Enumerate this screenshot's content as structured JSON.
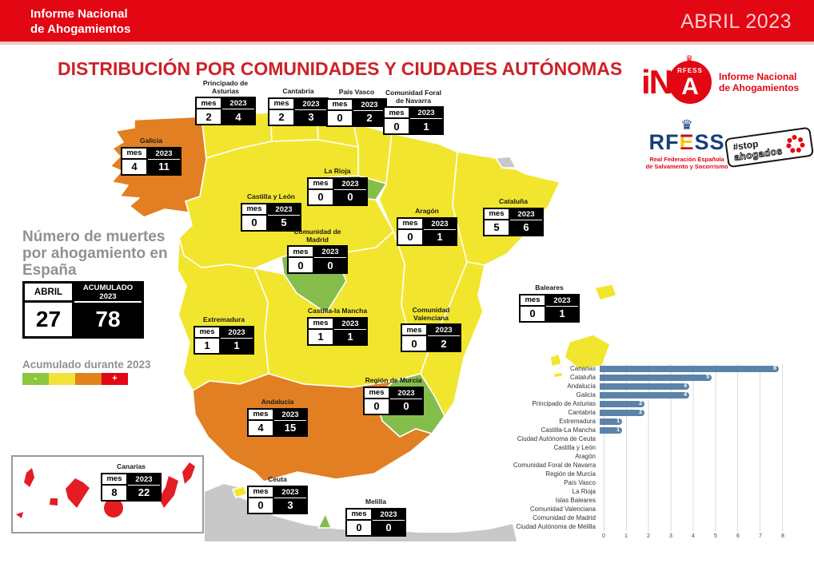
{
  "header": {
    "brand_line1": "Informe Nacional",
    "brand_line2": "de Ahogamientos",
    "period": "ABRIL 2023"
  },
  "page_title": "DISTRIBUCIÓN POR COMUNIDADES Y CIUDADES AUTÓNOMAS",
  "logos": {
    "ina": {
      "letters": "iN",
      "circle_letter": "A",
      "circle_small": "RFESS",
      "caption_line1": "Informe Nacional",
      "caption_line2": "de Ahogamientos"
    },
    "rfess": {
      "acronym_left": "RF",
      "acronym_e": "E",
      "acronym_right": "SS",
      "caption_line1": "Real Federación Española",
      "caption_line2": "de Salvamento y Socorrismo"
    },
    "stop": {
      "line1": "#stop",
      "line2": "ahogados"
    }
  },
  "summary": {
    "heading": "Número de muertes por ahogamiento en España",
    "col_month": "ABRIL",
    "col_accumulated": "ACUMULADO 2023",
    "month_value": "27",
    "accumulated_value": "78"
  },
  "legend": {
    "title": "Acumulado durante 2023",
    "colors": [
      "#8cc63e",
      "#f3e338",
      "#e2821c",
      "#e30613"
    ],
    "min_label": "-",
    "max_label": "+"
  },
  "colors": {
    "yellow": "#f2e52e",
    "green": "#85bd4b",
    "orange": "#e17f22",
    "red": "#e41c23",
    "neutral": "#c8c8c8",
    "header_red": "#e30613",
    "bar_blue": "#5b83aa"
  },
  "map": {
    "col_month": "mes",
    "col_year": "2023",
    "regions": [
      {
        "id": "galicia",
        "name": "Galicia",
        "mes": "4",
        "acumulado": "11",
        "color": "orange"
      },
      {
        "id": "asturias",
        "name": "Principado de Asturias",
        "mes": "2",
        "acumulado": "4",
        "color": "yellow"
      },
      {
        "id": "cantabria",
        "name": "Cantabria",
        "mes": "2",
        "acumulado": "3",
        "color": "yellow"
      },
      {
        "id": "pais_vasco",
        "name": "País Vasco",
        "mes": "0",
        "acumulado": "2",
        "color": "yellow"
      },
      {
        "id": "navarra",
        "name": "Comunidad Foral de Navarra",
        "mes": "0",
        "acumulado": "1",
        "color": "yellow"
      },
      {
        "id": "rioja",
        "name": "La Rioja",
        "mes": "0",
        "acumulado": "0",
        "color": "green"
      },
      {
        "id": "castilla_leon",
        "name": "Castilla y León",
        "mes": "0",
        "acumulado": "5",
        "color": "yellow"
      },
      {
        "id": "madrid",
        "name": "Comunidad de Madrid",
        "mes": "0",
        "acumulado": "0",
        "color": "green"
      },
      {
        "id": "aragon",
        "name": "Aragón",
        "mes": "0",
        "acumulado": "1",
        "color": "yellow"
      },
      {
        "id": "cataluna",
        "name": "Cataluña",
        "mes": "5",
        "acumulado": "6",
        "color": "yellow"
      },
      {
        "id": "extremadura",
        "name": "Extremadura",
        "mes": "1",
        "acumulado": "1",
        "color": "yellow"
      },
      {
        "id": "castilla_mancha",
        "name": "Castilla-la Mancha",
        "mes": "1",
        "acumulado": "1",
        "color": "yellow"
      },
      {
        "id": "valenciana",
        "name": "Comunidad Valenciana",
        "mes": "0",
        "acumulado": "2",
        "color": "yellow"
      },
      {
        "id": "baleares",
        "name": "Baleares",
        "mes": "0",
        "acumulado": "1",
        "color": "yellow"
      },
      {
        "id": "andalucia",
        "name": "Andalucía",
        "mes": "4",
        "acumulado": "15",
        "color": "orange"
      },
      {
        "id": "murcia",
        "name": "Región de Murcia",
        "mes": "0",
        "acumulado": "0",
        "color": "green"
      },
      {
        "id": "ceuta",
        "name": "Ceuta",
        "mes": "0",
        "acumulado": "3",
        "color": "yellow"
      },
      {
        "id": "melilla",
        "name": "Melilla",
        "mes": "0",
        "acumulado": "0",
        "color": "green"
      },
      {
        "id": "canarias",
        "name": "Canarias",
        "mes": "8",
        "acumulado": "22",
        "color": "red"
      }
    ]
  },
  "chart_data": {
    "type": "bar",
    "orientation": "horizontal",
    "title": "",
    "xlabel": "",
    "ylabel": "",
    "categories": [
      "Canarias",
      "Cataluña",
      "Andalucía",
      "Galicia",
      "Principado de Asturias",
      "Cantabria",
      "Extremadura",
      "Castilla-La Mancha",
      "Ciudad Autónoma de Ceuta",
      "Castilla y León",
      "Aragón",
      "Comunidad Foral de Navarra",
      "Región de Murcia",
      "País Vasco",
      "La Rioja",
      "Islas Baleares",
      "Comunidad Valenciana",
      "Comunidad de Madrid",
      "Ciudad Autónoma de Melilla"
    ],
    "values": [
      8,
      5,
      4,
      4,
      2,
      2,
      1,
      1,
      0,
      0,
      0,
      0,
      0,
      0,
      0,
      0,
      0,
      0,
      0
    ],
    "xlim": [
      0,
      8
    ],
    "x_ticks": [
      "0",
      "1",
      "2",
      "3",
      "4",
      "5",
      "6",
      "7",
      "8"
    ],
    "grid": true,
    "legend_position": "none",
    "bar_color": "#5b83aa"
  }
}
